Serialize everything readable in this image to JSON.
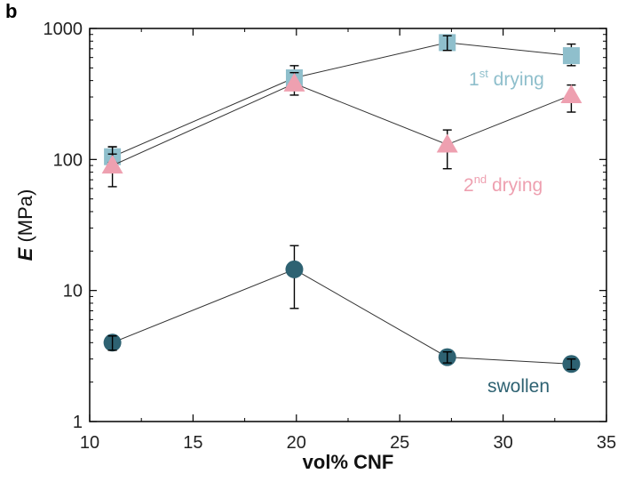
{
  "panel_label": "b",
  "chart_data": {
    "type": "scatter",
    "xlabel": "vol% CNF",
    "ylabel_symbol": "E",
    "ylabel_unit": " (MPa)",
    "xlim": [
      10,
      35
    ],
    "ylim": [
      1,
      1000
    ],
    "yscale": "log",
    "grid": false,
    "legend": "none",
    "x_ticks": [
      10,
      15,
      20,
      25,
      30,
      35
    ],
    "y_ticks": [
      1,
      10,
      100,
      1000
    ],
    "series": [
      {
        "name_base": "1",
        "name_sup": "st",
        "name_rest": " drying",
        "color": "#8fbfcc",
        "marker": "square",
        "x": [
          11.1,
          19.9,
          27.3,
          33.3
        ],
        "y": [
          105,
          420,
          780,
          620
        ],
        "err_low": [
          95,
          360,
          680,
          520
        ],
        "err_high": [
          125,
          520,
          880,
          760
        ]
      },
      {
        "name_base": "2",
        "name_sup": "nd",
        "name_rest": " drying",
        "color": "#eea0b0",
        "marker": "triangle",
        "x": [
          11.1,
          19.9,
          27.3,
          33.3
        ],
        "y": [
          90,
          380,
          130,
          310
        ],
        "err_low": [
          62,
          310,
          85,
          230
        ],
        "err_high": [
          110,
          460,
          168,
          370
        ]
      },
      {
        "name": "swollen",
        "color": "#2e6272",
        "marker": "circle",
        "x": [
          11.1,
          19.9,
          27.3,
          33.3
        ],
        "y": [
          4.0,
          14.5,
          3.1,
          2.75
        ],
        "err_low": [
          3.5,
          7.3,
          2.8,
          2.5
        ],
        "err_high": [
          4.5,
          22,
          3.4,
          3.0
        ]
      }
    ]
  }
}
